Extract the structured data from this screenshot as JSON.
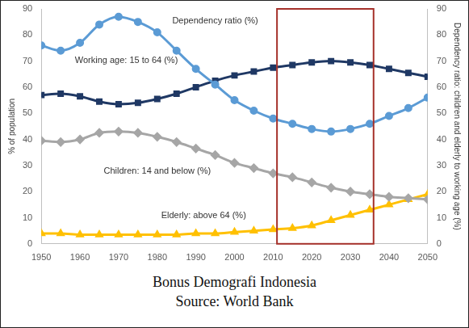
{
  "chart_data": {
    "type": "line",
    "title": "Bonus Demografi Indonesia",
    "source": "Source: World Bank",
    "ylabel": "% of population",
    "y2label": "Dependency ratio: children and elderly to working age (%)",
    "x": [
      1950,
      1955,
      1960,
      1965,
      1970,
      1975,
      1980,
      1985,
      1990,
      1995,
      2000,
      2005,
      2010,
      2015,
      2020,
      2025,
      2030,
      2035,
      2040,
      2045,
      2050
    ],
    "xlim": [
      1950,
      2050
    ],
    "xticks": [
      1950,
      1960,
      1970,
      1980,
      1990,
      2000,
      2010,
      2020,
      2030,
      2040,
      2050
    ],
    "ylim": [
      0,
      90
    ],
    "yticks": [
      0,
      10,
      20,
      30,
      40,
      50,
      60,
      70,
      80,
      90
    ],
    "y2lim": [
      0,
      90
    ],
    "y2ticks": [
      0,
      10,
      20,
      30,
      40,
      50,
      60,
      70,
      80,
      90
    ],
    "grid": false,
    "highlight": {
      "x": [
        2011,
        2036
      ],
      "color": "#a5312a"
    },
    "series": [
      {
        "name": "Dependency ratio (%)",
        "color": "#5b9bd5",
        "marker": "circle",
        "axis": "y2",
        "values": [
          76,
          74,
          77,
          84,
          87,
          85,
          81,
          74,
          67,
          61,
          55,
          51,
          48,
          46,
          44,
          43,
          44,
          46,
          49,
          52,
          56
        ]
      },
      {
        "name": "Working age: 15 to 64 (%)",
        "color": "#1f3864",
        "marker": "square",
        "values": [
          57,
          57.5,
          56.5,
          54.5,
          53.5,
          54,
          55.5,
          57.5,
          60,
          62.5,
          64.5,
          66,
          67.5,
          68.5,
          69.5,
          70,
          69.5,
          68.5,
          67,
          65.5,
          64
        ]
      },
      {
        "name": "Children: 14 and below (%)",
        "color": "#a6a6a6",
        "marker": "diamond",
        "values": [
          39.5,
          39,
          40,
          42.5,
          43,
          42.5,
          41,
          39,
          36.5,
          34,
          31,
          29,
          27,
          25.5,
          23.5,
          21.5,
          20,
          19,
          18,
          17.5,
          17
        ]
      },
      {
        "name": "Elderly: above 64 (%)",
        "color": "#ffc000",
        "marker": "triangle",
        "values": [
          4,
          4,
          3.5,
          3.5,
          3.5,
          3.5,
          3.5,
          3.5,
          4,
          4,
          4.5,
          5,
          5.5,
          6,
          7,
          9,
          11,
          13,
          15,
          17,
          19
        ]
      }
    ]
  }
}
